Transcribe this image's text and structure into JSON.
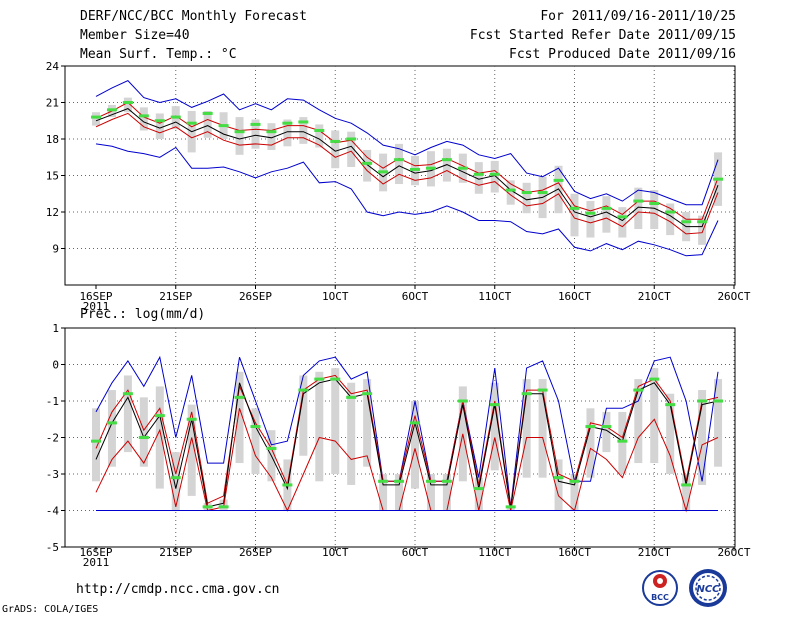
{
  "header": {
    "title": "DERF/NCC/BCC Monthly Forecast",
    "member_size": "Member Size=40",
    "variable": "Mean Surf. Temp.: °C",
    "period": "For 2011/09/16-2011/10/25",
    "started": "Fcst Started Refer Date 2011/09/15",
    "produced": "Fcst Produced Date 2011/09/16"
  },
  "footer": {
    "url": "http://cmdp.ncc.cma.gov.cn",
    "grads": "GrADS: COLA/IGES",
    "logo_left": "BCC",
    "logo_right": "NCC"
  },
  "colors": {
    "ensemble_mean": "#000000",
    "upper_bound": "#0000cc",
    "lower_bound": "#cc0000",
    "member_box": "#d4d4d4",
    "median_marker": "#44dd44"
  },
  "chart_data": [
    {
      "type": "line",
      "title": "Mean Surf. Temp.: °C",
      "xlabel": "",
      "ylabel": "",
      "x_tick_labels": [
        "16SEP",
        "21SEP",
        "26SEP",
        "1OCT",
        "6OCT",
        "11OCT",
        "16OCT",
        "21OCT",
        "26OCT"
      ],
      "x_year_label": "2011",
      "y_ticks": [
        "24",
        "21",
        "18",
        "15",
        "12",
        "9"
      ],
      "ylim": [
        6,
        24
      ],
      "x": [
        "09/16",
        "09/17",
        "09/18",
        "09/19",
        "09/20",
        "09/21",
        "09/22",
        "09/23",
        "09/24",
        "09/25",
        "09/26",
        "09/27",
        "09/28",
        "09/29",
        "09/30",
        "10/01",
        "10/02",
        "10/03",
        "10/04",
        "10/05",
        "10/06",
        "10/07",
        "10/08",
        "10/09",
        "10/10",
        "10/11",
        "10/12",
        "10/13",
        "10/14",
        "10/15",
        "10/16",
        "10/17",
        "10/18",
        "10/19",
        "10/20",
        "10/21",
        "10/22",
        "10/23",
        "10/24",
        "10/25"
      ],
      "series": [
        {
          "name": "max",
          "values": [
            21.5,
            22.2,
            22.8,
            21.4,
            21.0,
            21.3,
            20.6,
            21.1,
            21.7,
            20.4,
            20.9,
            20.4,
            21.3,
            21.2,
            20.4,
            19.7,
            19.3,
            18.5,
            17.5,
            17.2,
            16.7,
            17.3,
            17.8,
            17.5,
            16.7,
            16.4,
            16.8,
            15.2,
            14.9,
            15.6,
            13.7,
            13.1,
            13.5,
            12.9,
            13.8,
            13.6,
            13.1,
            12.6,
            12.6,
            16.3
          ]
        },
        {
          "name": "upper",
          "values": [
            19.7,
            20.3,
            21.0,
            19.8,
            19.3,
            19.9,
            19.0,
            19.6,
            19.1,
            18.7,
            18.8,
            18.7,
            19.1,
            19.1,
            18.7,
            17.7,
            17.9,
            16.5,
            15.6,
            16.4,
            15.8,
            15.9,
            16.4,
            15.8,
            15.2,
            15.4,
            14.3,
            13.6,
            13.8,
            14.4,
            12.5,
            12.1,
            12.5,
            11.8,
            12.9,
            12.9,
            12.3,
            11.4,
            11.4,
            14.8
          ]
        },
        {
          "name": "mean",
          "values": [
            19.5,
            20.0,
            20.5,
            19.4,
            18.9,
            19.4,
            18.6,
            19.1,
            18.4,
            18.0,
            18.3,
            18.1,
            18.6,
            18.6,
            18.0,
            17.0,
            17.4,
            15.9,
            14.9,
            15.8,
            15.2,
            15.4,
            15.9,
            15.3,
            14.7,
            15.0,
            13.8,
            13.0,
            13.2,
            13.9,
            12.0,
            11.6,
            12.0,
            11.3,
            12.4,
            12.3,
            11.7,
            10.8,
            10.8,
            14.2
          ]
        },
        {
          "name": "lower",
          "values": [
            19.0,
            19.6,
            20.1,
            19.0,
            18.5,
            19.0,
            18.1,
            18.6,
            17.9,
            17.5,
            17.6,
            17.5,
            18.1,
            18.1,
            17.5,
            16.5,
            17.0,
            15.4,
            14.3,
            15.1,
            14.6,
            14.8,
            15.4,
            14.7,
            14.2,
            14.5,
            13.4,
            12.5,
            12.7,
            13.5,
            11.5,
            11.1,
            11.5,
            10.8,
            12.0,
            11.9,
            11.2,
            10.2,
            10.3,
            13.6
          ]
        },
        {
          "name": "min",
          "values": [
            17.6,
            17.4,
            17.0,
            16.8,
            16.5,
            17.3,
            15.6,
            15.6,
            15.7,
            15.3,
            14.8,
            15.3,
            15.6,
            16.1,
            14.4,
            14.5,
            13.9,
            12.0,
            11.7,
            12.0,
            11.8,
            12.0,
            12.5,
            12.0,
            11.3,
            11.3,
            11.2,
            10.4,
            10.2,
            10.6,
            9.1,
            8.8,
            9.4,
            8.9,
            9.6,
            9.3,
            8.9,
            8.4,
            8.5,
            11.3
          ]
        },
        {
          "name": "median",
          "values": [
            19.8,
            20.4,
            21.0,
            19.9,
            19.5,
            19.8,
            19.3,
            20.1,
            19.1,
            18.6,
            19.2,
            18.6,
            19.3,
            19.4,
            18.7,
            17.8,
            18.0,
            16.0,
            15.3,
            16.3,
            15.5,
            15.6,
            16.3,
            15.6,
            15.1,
            15.1,
            13.8,
            13.6,
            13.6,
            14.6,
            12.3,
            11.9,
            12.3,
            11.6,
            12.9,
            12.7,
            12.0,
            11.2,
            11.2,
            14.7
          ]
        }
      ],
      "box_low": [
        19.1,
        19.8,
        20.2,
        18.7,
        18.0,
        18.8,
        16.9,
        18.1,
        18.0,
        16.7,
        17.2,
        17.1,
        17.4,
        17.6,
        17.3,
        15.6,
        15.7,
        14.5,
        13.7,
        14.3,
        14.2,
        14.1,
        14.5,
        14.4,
        13.5,
        13.6,
        12.6,
        11.9,
        11.5,
        11.9,
        10.0,
        9.9,
        10.3,
        9.9,
        10.6,
        10.6,
        10.1,
        9.6,
        9.3,
        12.5
      ],
      "box_high": [
        20.2,
        20.8,
        21.4,
        20.6,
        20.1,
        20.7,
        20.3,
        20.3,
        20.2,
        19.8,
        19.6,
        19.3,
        19.6,
        19.8,
        19.2,
        18.7,
        18.6,
        17.1,
        16.8,
        17.6,
        16.6,
        17.0,
        17.2,
        16.8,
        16.1,
        16.2,
        14.6,
        14.4,
        14.9,
        15.8,
        13.5,
        12.9,
        13.3,
        12.4,
        14.0,
        13.8,
        12.7,
        12.0,
        11.7,
        16.9
      ]
    },
    {
      "type": "line",
      "title": "Prec.: log(mm/d)",
      "xlabel": "",
      "ylabel": "",
      "x_tick_labels": [
        "16SEP",
        "21SEP",
        "26SEP",
        "1OCT",
        "6OCT",
        "11OCT",
        "16OCT",
        "21OCT",
        "26OCT"
      ],
      "x_year_label": "2011",
      "y_ticks": [
        "1",
        "0",
        "-1",
        "-2",
        "-3",
        "-4",
        "-5"
      ],
      "ylim": [
        -5,
        1
      ],
      "x": [
        "09/16",
        "09/17",
        "09/18",
        "09/19",
        "09/20",
        "09/21",
        "09/22",
        "09/23",
        "09/24",
        "09/25",
        "09/26",
        "09/27",
        "09/28",
        "09/29",
        "09/30",
        "10/01",
        "10/02",
        "10/03",
        "10/04",
        "10/05",
        "10/06",
        "10/07",
        "10/08",
        "10/09",
        "10/10",
        "10/11",
        "10/12",
        "10/13",
        "10/14",
        "10/15",
        "10/16",
        "10/17",
        "10/18",
        "10/19",
        "10/20",
        "10/21",
        "10/22",
        "10/23",
        "10/24",
        "10/25"
      ],
      "series": [
        {
          "name": "max",
          "values": [
            -1.3,
            -0.5,
            0.1,
            -0.6,
            0.2,
            -2.0,
            -0.3,
            -2.7,
            -2.7,
            0.2,
            -1.0,
            -2.2,
            -2.1,
            -0.3,
            0.1,
            0.2,
            -0.4,
            -0.2,
            -3.2,
            -3.2,
            -1.0,
            -3.2,
            -3.2,
            -1.0,
            -3.1,
            -0.1,
            -3.9,
            -0.1,
            0.1,
            -1.0,
            -3.2,
            -3.2,
            -1.2,
            -1.2,
            -1.0,
            0.1,
            0.2,
            -1.0,
            -3.2,
            -0.2
          ]
        },
        {
          "name": "upper",
          "values": [
            -2.3,
            -1.3,
            -0.7,
            -1.8,
            -1.2,
            -3.0,
            -1.3,
            -3.8,
            -3.6,
            -0.6,
            -1.6,
            -2.3,
            -3.3,
            -0.7,
            -0.4,
            -0.3,
            -0.8,
            -0.7,
            -3.2,
            -3.2,
            -1.4,
            -3.2,
            -3.2,
            -1.0,
            -3.3,
            -1.0,
            -3.9,
            -0.7,
            -0.7,
            -3.0,
            -3.2,
            -1.6,
            -1.7,
            -2.0,
            -0.6,
            -0.4,
            -1.0,
            -3.2,
            -1.0,
            -0.9
          ]
        },
        {
          "name": "mean",
          "values": [
            -2.6,
            -1.6,
            -0.9,
            -2.0,
            -1.4,
            -3.4,
            -1.5,
            -3.9,
            -3.8,
            -0.5,
            -1.7,
            -2.5,
            -3.4,
            -0.8,
            -0.5,
            -0.4,
            -0.9,
            -0.8,
            -3.3,
            -3.3,
            -1.6,
            -3.3,
            -3.3,
            -1.1,
            -3.4,
            -1.1,
            -3.95,
            -0.8,
            -0.8,
            -3.2,
            -3.3,
            -1.7,
            -1.8,
            -2.1,
            -0.7,
            -0.5,
            -1.1,
            -3.3,
            -1.1,
            -1.0
          ]
        },
        {
          "name": "lower",
          "values": [
            -3.5,
            -2.6,
            -2.1,
            -2.7,
            -1.8,
            -3.9,
            -2.0,
            -4.0,
            -3.9,
            -1.2,
            -2.5,
            -3.1,
            -4.0,
            -3.0,
            -2.0,
            -2.1,
            -2.6,
            -2.5,
            -4.0,
            -4.0,
            -2.3,
            -4.0,
            -4.0,
            -1.9,
            -4.0,
            -2.0,
            -4.0,
            -2.0,
            -2.0,
            -3.6,
            -4.0,
            -2.3,
            -2.6,
            -3.1,
            -2.0,
            -1.5,
            -2.5,
            -4.0,
            -2.2,
            -2.0
          ]
        },
        {
          "name": "min",
          "values": [
            -4.0,
            -4.0,
            -4.0,
            -4.0,
            -4.0,
            -4.0,
            -4.0,
            -4.0,
            -4.0,
            -4.0,
            -4.0,
            -4.0,
            -4.0,
            -4.0,
            -4.0,
            -4.0,
            -4.0,
            -4.0,
            -4.0,
            -4.0,
            -4.0,
            -4.0,
            -4.0,
            -4.0,
            -4.0,
            -4.0,
            -4.0,
            -4.0,
            -4.0,
            -4.0,
            -4.0,
            -4.0,
            -4.0,
            -4.0,
            -4.0,
            -4.0,
            -4.0,
            -4.0,
            -4.0,
            -4.0
          ]
        },
        {
          "name": "median",
          "values": [
            -2.1,
            -1.6,
            -0.8,
            -2.0,
            -1.4,
            -3.1,
            -1.5,
            -3.9,
            -3.9,
            -0.9,
            -1.7,
            -2.3,
            -3.3,
            -0.7,
            -0.4,
            -0.4,
            -0.9,
            -0.8,
            -3.2,
            -3.2,
            -1.6,
            -3.2,
            -3.2,
            -1.0,
            -3.4,
            -1.1,
            -3.9,
            -0.8,
            -0.7,
            -3.1,
            -3.2,
            -1.7,
            -1.7,
            -2.1,
            -0.7,
            -0.4,
            -1.1,
            -3.3,
            -1.0,
            -1.0
          ]
        }
      ],
      "box_low": [
        -3.2,
        -2.8,
        -2.4,
        -2.8,
        -3.4,
        -4.0,
        -3.6,
        -4.0,
        -4.0,
        -2.7,
        -3.0,
        -3.2,
        -4.0,
        -2.5,
        -3.2,
        -3.0,
        -3.3,
        -2.8,
        -4.0,
        -4.0,
        -3.4,
        -4.0,
        -4.0,
        -3.2,
        -4.0,
        -2.9,
        -4.0,
        -3.1,
        -3.1,
        -4.0,
        -4.0,
        -3.1,
        -2.4,
        -3.0,
        -2.7,
        -2.7,
        -3.0,
        -4.0,
        -3.3,
        -2.8
      ],
      "box_high": [
        -1.2,
        -0.7,
        -0.3,
        -0.9,
        -0.6,
        -2.4,
        -1.1,
        -3.8,
        -3.7,
        -0.2,
        -1.2,
        -1.8,
        -2.6,
        -0.3,
        -0.2,
        -0.1,
        -0.5,
        -0.4,
        -3.0,
        -3.0,
        -1.0,
        -3.0,
        -3.0,
        -0.6,
        -3.1,
        -0.5,
        -3.9,
        -0.4,
        -0.4,
        -2.6,
        -3.0,
        -1.2,
        -1.3,
        -1.3,
        -0.4,
        -0.1,
        -0.8,
        -3.0,
        -0.7,
        -0.4
      ]
    }
  ]
}
